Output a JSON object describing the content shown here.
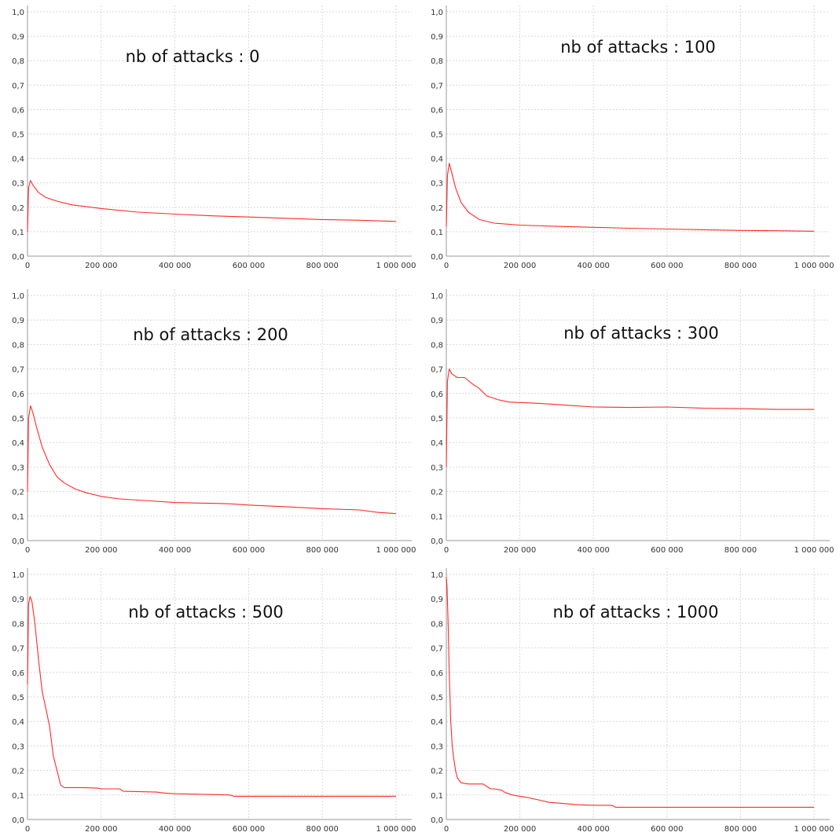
{
  "chart_data": [
    {
      "type": "line",
      "title": "nb of attacks : 0",
      "xlim": [
        0,
        1000000
      ],
      "ylim": [
        0,
        1
      ],
      "xticks": [
        "0",
        "200 000",
        "400 000",
        "600 000",
        "800 000",
        "1 000 000"
      ],
      "yticks": [
        "0,0",
        "0,1",
        "0,2",
        "0,3",
        "0,4",
        "0,5",
        "0,6",
        "0,7",
        "0,8",
        "0,9",
        "1,0"
      ],
      "grid": true,
      "line_color": "#ff2a2a",
      "series": [
        {
          "x": [
            0,
            3000,
            8000,
            15000,
            30000,
            50000,
            80000,
            120000,
            200000,
            300000,
            400000,
            500000,
            600000,
            700000,
            800000,
            900000,
            1000000
          ],
          "y": [
            0.1,
            0.28,
            0.31,
            0.29,
            0.26,
            0.24,
            0.225,
            0.21,
            0.195,
            0.18,
            0.172,
            0.165,
            0.16,
            0.155,
            0.15,
            0.147,
            0.142
          ]
        }
      ]
    },
    {
      "type": "line",
      "title": "nb of attacks : 100",
      "xlim": [
        0,
        1000000
      ],
      "ylim": [
        0,
        1
      ],
      "xticks": [
        "0",
        "200 000",
        "400 000",
        "600 000",
        "800 000",
        "1 000 000"
      ],
      "yticks": [
        "0,0",
        "0,1",
        "0,2",
        "0,3",
        "0,4",
        "0,5",
        "0,6",
        "0,7",
        "0,8",
        "0,9",
        "1,0"
      ],
      "grid": true,
      "line_color": "#ff2a2a",
      "series": [
        {
          "x": [
            0,
            3000,
            8000,
            15000,
            25000,
            40000,
            60000,
            90000,
            130000,
            200000,
            300000,
            400000,
            500000,
            600000,
            700000,
            800000,
            900000,
            1000000
          ],
          "y": [
            0.12,
            0.33,
            0.38,
            0.34,
            0.28,
            0.22,
            0.18,
            0.15,
            0.135,
            0.127,
            0.122,
            0.118,
            0.114,
            0.111,
            0.108,
            0.105,
            0.104,
            0.102
          ]
        }
      ]
    },
    {
      "type": "line",
      "title": "nb of attacks : 200",
      "xlim": [
        0,
        1000000
      ],
      "ylim": [
        0,
        1
      ],
      "xticks": [
        "0",
        "200 000",
        "400 000",
        "600 000",
        "800 000",
        "1 000 000"
      ],
      "yticks": [
        "0,0",
        "0,1",
        "0,2",
        "0,3",
        "0,4",
        "0,5",
        "0,6",
        "0,7",
        "0,8",
        "0,9",
        "1,0"
      ],
      "grid": true,
      "line_color": "#ff2a2a",
      "series": [
        {
          "x": [
            0,
            3000,
            8000,
            15000,
            25000,
            40000,
            60000,
            80000,
            100000,
            130000,
            160000,
            200000,
            250000,
            300000,
            400000,
            500000,
            550000,
            600000,
            700000,
            800000,
            900000,
            950000,
            1000000
          ],
          "y": [
            0.2,
            0.5,
            0.55,
            0.52,
            0.46,
            0.38,
            0.31,
            0.26,
            0.235,
            0.21,
            0.195,
            0.18,
            0.17,
            0.165,
            0.155,
            0.152,
            0.15,
            0.145,
            0.138,
            0.13,
            0.125,
            0.115,
            0.11
          ]
        }
      ]
    },
    {
      "type": "line",
      "title": "nb of attacks : 300",
      "xlim": [
        0,
        1000000
      ],
      "ylim": [
        0,
        1
      ],
      "xticks": [
        "0",
        "200 000",
        "400 000",
        "600 000",
        "800 000",
        "1 000 000"
      ],
      "yticks": [
        "0,0",
        "0,1",
        "0,2",
        "0,3",
        "0,4",
        "0,5",
        "0,6",
        "0,7",
        "0,8",
        "0,9",
        "1,0"
      ],
      "grid": true,
      "line_color": "#ff2a2a",
      "series": [
        {
          "x": [
            0,
            3000,
            8000,
            15000,
            30000,
            50000,
            70000,
            90000,
            110000,
            140000,
            170000,
            200000,
            250000,
            300000,
            350000,
            400000,
            500000,
            600000,
            700000,
            800000,
            900000,
            1000000
          ],
          "y": [
            0.3,
            0.65,
            0.7,
            0.68,
            0.665,
            0.665,
            0.64,
            0.62,
            0.59,
            0.575,
            0.565,
            0.563,
            0.56,
            0.555,
            0.55,
            0.545,
            0.543,
            0.545,
            0.54,
            0.538,
            0.535,
            0.535
          ]
        }
      ]
    },
    {
      "type": "line",
      "title": "nb of attacks : 500",
      "xlim": [
        0,
        1000000
      ],
      "ylim": [
        0,
        1
      ],
      "xticks": [
        "0",
        "200 000",
        "400 000",
        "600 000",
        "800 000",
        "1 000 000"
      ],
      "yticks": [
        "0,0",
        "0,1",
        "0,2",
        "0,3",
        "0,4",
        "0,5",
        "0,6",
        "0,7",
        "0,8",
        "0,9",
        "1,0"
      ],
      "grid": true,
      "line_color": "#ff2a2a",
      "series": [
        {
          "x": [
            0,
            3000,
            7000,
            12000,
            20000,
            30000,
            40000,
            50000,
            60000,
            70000,
            80000,
            90000,
            100000,
            150000,
            190000,
            200000,
            250000,
            260000,
            350000,
            370000,
            400000,
            500000,
            550000,
            560000,
            700000,
            800000,
            1000000
          ],
          "y": [
            0.55,
            0.88,
            0.91,
            0.89,
            0.8,
            0.65,
            0.52,
            0.45,
            0.38,
            0.26,
            0.2,
            0.14,
            0.13,
            0.13,
            0.128,
            0.125,
            0.125,
            0.115,
            0.112,
            0.108,
            0.105,
            0.102,
            0.1,
            0.095,
            0.095,
            0.095,
            0.095
          ]
        }
      ]
    },
    {
      "type": "line",
      "title": "nb of attacks : 1000",
      "xlim": [
        0,
        1000000
      ],
      "ylim": [
        0,
        1
      ],
      "xticks": [
        "0",
        "200 000",
        "400 000",
        "600 000",
        "800 000",
        "1 000 000"
      ],
      "yticks": [
        "0,0",
        "0,1",
        "0,2",
        "0,3",
        "0,4",
        "0,5",
        "0,6",
        "0,7",
        "0,8",
        "0,9",
        "1,0"
      ],
      "grid": true,
      "line_color": "#ff2a2a",
      "series": [
        {
          "x": [
            0,
            2000,
            5000,
            8000,
            12000,
            16000,
            20000,
            25000,
            30000,
            40000,
            60000,
            100000,
            120000,
            130000,
            150000,
            160000,
            180000,
            200000,
            220000,
            250000,
            280000,
            320000,
            360000,
            400000,
            450000,
            460000,
            600000,
            800000,
            1000000
          ],
          "y": [
            0.99,
            0.95,
            0.8,
            0.6,
            0.4,
            0.3,
            0.25,
            0.2,
            0.17,
            0.15,
            0.145,
            0.145,
            0.125,
            0.125,
            0.12,
            0.11,
            0.1,
            0.095,
            0.09,
            0.08,
            0.07,
            0.065,
            0.06,
            0.058,
            0.058,
            0.05,
            0.05,
            0.05,
            0.05
          ]
        }
      ]
    }
  ]
}
